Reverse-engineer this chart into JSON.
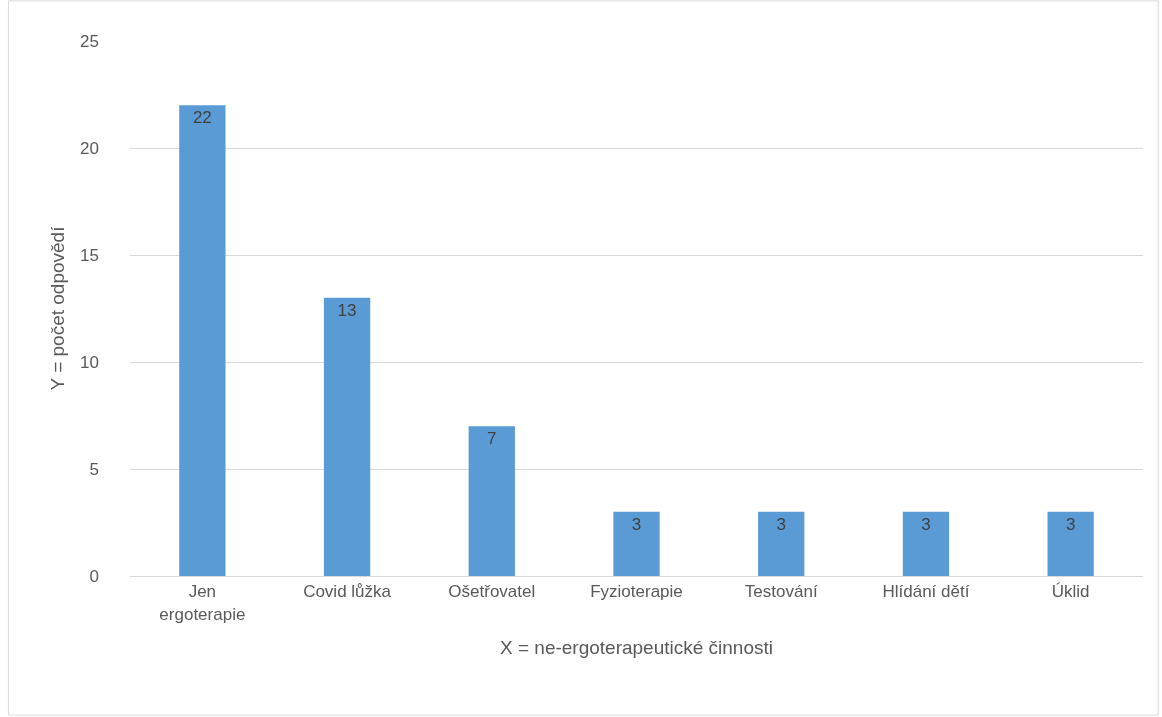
{
  "chart_data": {
    "type": "bar",
    "xlabel": "X = ne-ergoterapeutické činnosti",
    "ylabel": "Y = počet odpovědí",
    "categories": [
      "Jen ergoterapie",
      "Covid lůžka",
      "Ošetřovatel",
      "Fyzioterapie",
      "Testování",
      "Hlídání dětí",
      "Úklid"
    ],
    "values": [
      22,
      13,
      7,
      3,
      3,
      3,
      3
    ],
    "color": "#5b9bd5",
    "ylim": [
      0,
      25
    ],
    "yticks": [
      0,
      5,
      10,
      15,
      20,
      25
    ],
    "grid": "y",
    "data_labels": true
  }
}
